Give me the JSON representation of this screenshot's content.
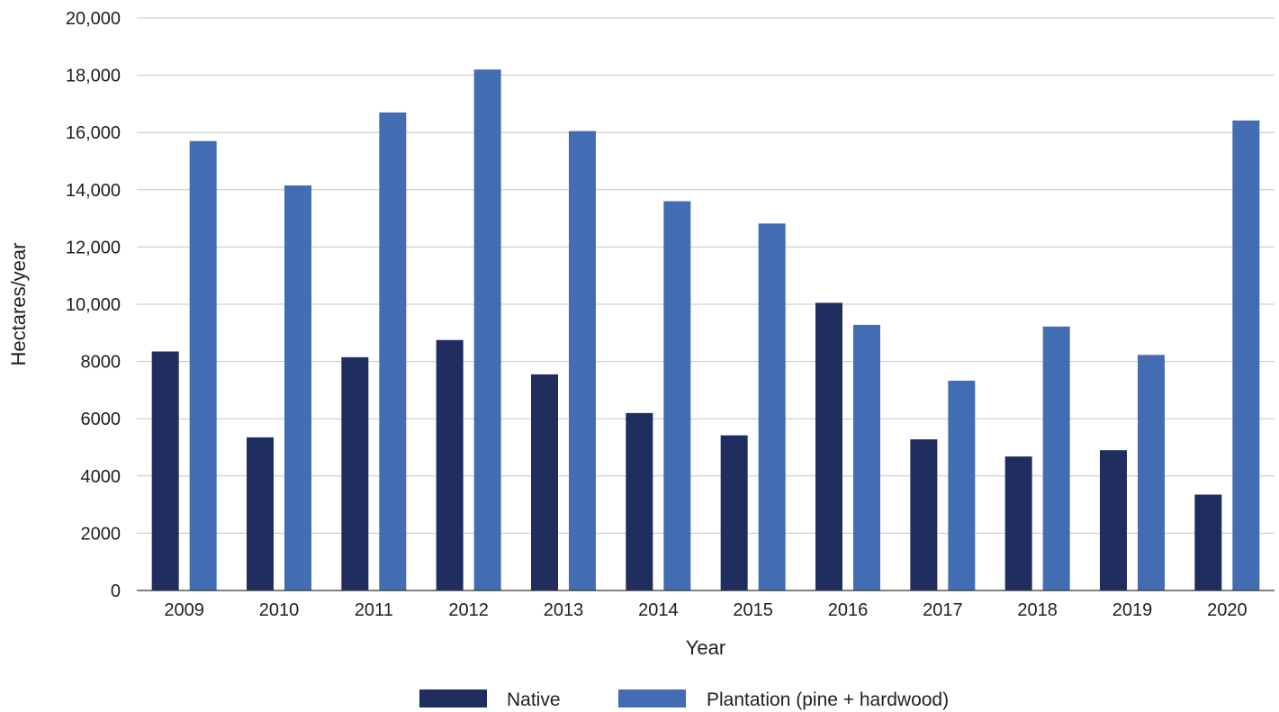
{
  "chart_data": {
    "type": "bar",
    "title": "",
    "xlabel": "Year",
    "ylabel": "Hectares/year",
    "ylim": [
      0,
      20000
    ],
    "yticks": [
      {
        "value": 0,
        "label": "0"
      },
      {
        "value": 2000,
        "label": "2000"
      },
      {
        "value": 4000,
        "label": "4000"
      },
      {
        "value": 6000,
        "label": "6000"
      },
      {
        "value": 8000,
        "label": "8000"
      },
      {
        "value": 10000,
        "label": "10,000"
      },
      {
        "value": 12000,
        "label": "12,000"
      },
      {
        "value": 14000,
        "label": "14,000"
      },
      {
        "value": 16000,
        "label": "16,000"
      },
      {
        "value": 18000,
        "label": "18,000"
      },
      {
        "value": 20000,
        "label": "20,000"
      }
    ],
    "categories": [
      "2009",
      "2010",
      "2011",
      "2012",
      "2013",
      "2014",
      "2015",
      "2016",
      "2017",
      "2018",
      "2019",
      "2020"
    ],
    "series": [
      {
        "name": "Native",
        "color": "#202e5f",
        "values": [
          8350,
          5350,
          8150,
          8750,
          7550,
          6200,
          5420,
          10050,
          5280,
          4680,
          4900,
          3350
        ]
      },
      {
        "name": "Plantation (pine + hardwood)",
        "color": "#426db3",
        "values": [
          15700,
          14150,
          16700,
          18200,
          16050,
          13600,
          12820,
          9280,
          7330,
          9220,
          8230,
          16420
        ]
      }
    ],
    "grid": true,
    "legend": "bottom-center"
  }
}
